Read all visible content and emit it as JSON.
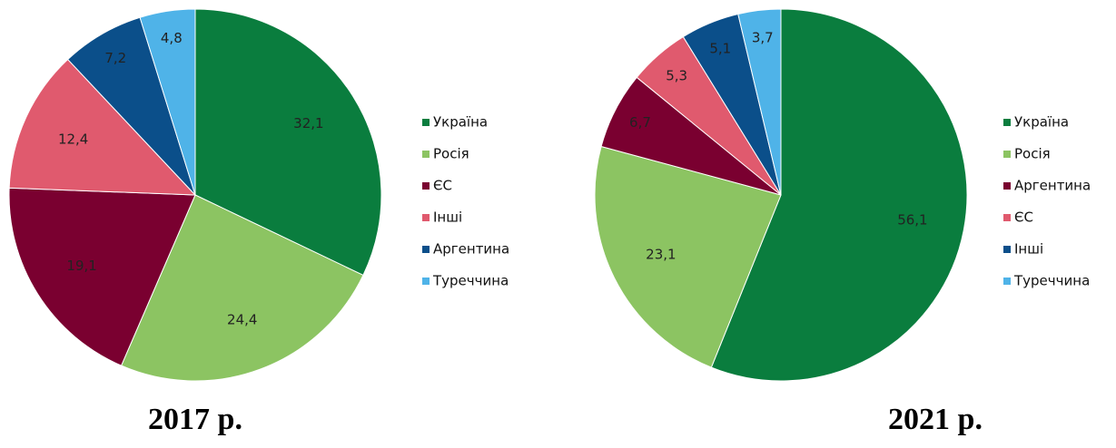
{
  "chart_data": [
    {
      "type": "pie",
      "title": "2017 р.",
      "categories": [
        "Україна",
        "Росія",
        "ЄС",
        "Інші",
        "Аргентина",
        "Туреччина"
      ],
      "values": [
        32.1,
        24.4,
        19.1,
        12.4,
        7.2,
        4.8
      ],
      "value_labels": [
        "32,1",
        "24,4",
        "19,1",
        "12,4",
        "7,2",
        "4,8"
      ],
      "colors": [
        "#0a7d3e",
        "#8cc462",
        "#7a0030",
        "#e05a6e",
        "#0b4f8a",
        "#4fb3e8"
      ]
    },
    {
      "type": "pie",
      "title": "2021 р.",
      "categories": [
        "Україна",
        "Росія",
        "Аргентина",
        "ЄС",
        "Інші",
        "Туреччина"
      ],
      "values": [
        56.1,
        23.1,
        6.7,
        5.3,
        5.1,
        3.7
      ],
      "value_labels": [
        "56,1",
        "23,1",
        "6,7",
        "5,3",
        "5,1",
        "3,7"
      ],
      "colors": [
        "#0a7d3e",
        "#8cc462",
        "#7a0030",
        "#e05a6e",
        "#0b4f8a",
        "#4fb3e8"
      ]
    }
  ]
}
